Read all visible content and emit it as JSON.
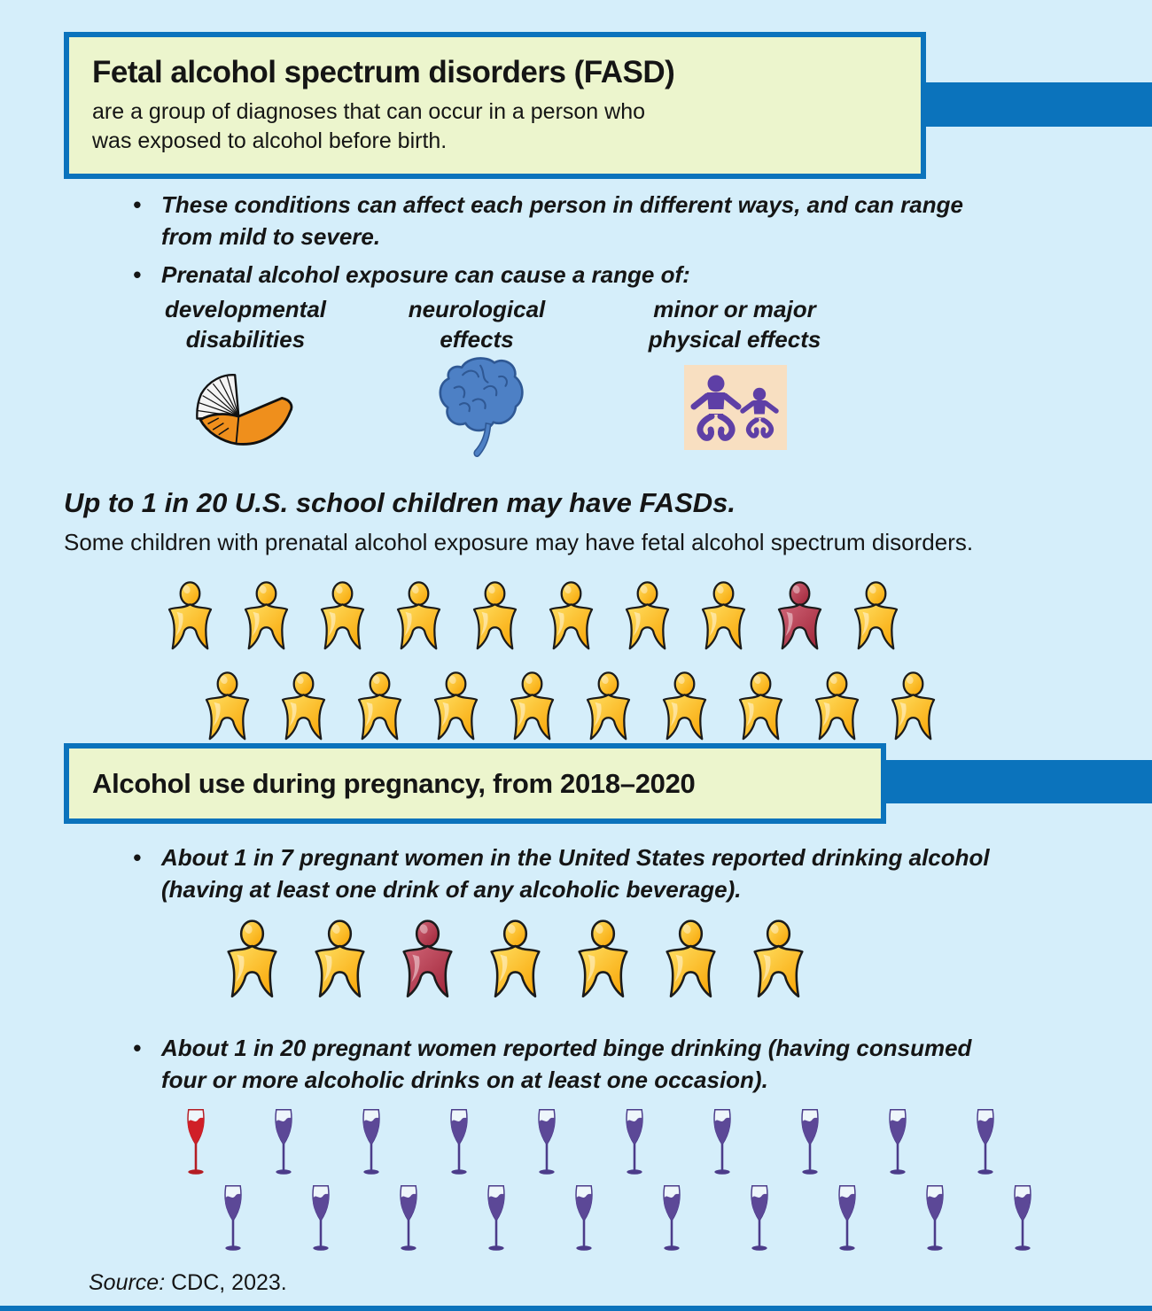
{
  "colors": {
    "bg": "#d5eefa",
    "panel": "#ecf5cd",
    "blue": "#0b73bc",
    "text": "#151515",
    "outline": "#1b1b1b",
    "person_yellow_light": "#ffdf63",
    "person_yellow_dark": "#f8a200",
    "person_red_light": "#d06577",
    "person_red_dark": "#9e2236",
    "wine_purple": "#5c4897",
    "wine_purple_dark": "#4c3c8a",
    "wine_red": "#d01f27",
    "wine_red_dark": "#b41c23",
    "baby_bg": "#f8dfc1",
    "baby_purple": "#5e3fa6",
    "brain_blue": "#4d80c5",
    "brain_dark": "#2f5894",
    "book_orange": "#ef8f1c"
  },
  "header_box": {
    "title": "Fetal alcohol spectrum disorders (FASD)",
    "subtitle_line1": "are a group of diagnoses that can occur in a person who",
    "subtitle_line2": "was exposed to alcohol before birth."
  },
  "intro_bullets": {
    "b1_line1": "These conditions can affect each person in different ways, and can range",
    "b1_line2": "from mild to severe.",
    "b2": "Prenatal alcohol exposure can cause a range of:"
  },
  "effects": [
    {
      "label_line1": "developmental",
      "label_line2": "disabilities",
      "icon": "book-icon"
    },
    {
      "label_line1": "neurological",
      "label_line2": "effects",
      "icon": "brain-icon"
    },
    {
      "label_line1": "minor or major",
      "label_line2": "physical effects",
      "icon": "babies-icon"
    }
  ],
  "fasd_stat": {
    "heading": "Up to 1 in 20 U.S. school children may have FASDs.",
    "subheading": "Some children with prenatal alcohol exposure may have fetal alcohol spectrum disorders.",
    "rows": [
      {
        "count": 10,
        "highlight_index": 8
      },
      {
        "count": 10,
        "highlight_index": -1
      }
    ]
  },
  "pregnancy_box": {
    "title": "Alcohol use during pregnancy, from 2018–2020"
  },
  "drinking_stat": {
    "bullet_line1": "About 1 in 7 pregnant women in the United States reported drinking alcohol",
    "bullet_line2": "(having at least one drink of any alcoholic beverage).",
    "rows": [
      {
        "count": 7,
        "highlight_index": 2
      }
    ]
  },
  "binge_stat": {
    "bullet_line1": "About 1 in 20 pregnant women reported binge drinking (having consumed",
    "bullet_line2": "four or more alcoholic drinks on at least one occasion).",
    "rows": [
      {
        "count": 10,
        "highlight_index": 0
      },
      {
        "count": 10,
        "highlight_index": -1
      }
    ]
  },
  "source": {
    "label": "Source:",
    "text": "CDC, 2023."
  },
  "chart_data": [
    {
      "type": "pictograph",
      "title": "Up to 1 in 20 U.S. school children may have FASDs.",
      "icon": "child",
      "total": 20,
      "highlighted": 1
    },
    {
      "type": "pictograph",
      "title": "About 1 in 7 pregnant women reported drinking alcohol",
      "icon": "pregnant-woman",
      "total": 7,
      "highlighted": 1
    },
    {
      "type": "pictograph",
      "title": "About 1 in 20 pregnant women reported binge drinking",
      "icon": "wine-glass",
      "total": 20,
      "highlighted": 1
    }
  ]
}
